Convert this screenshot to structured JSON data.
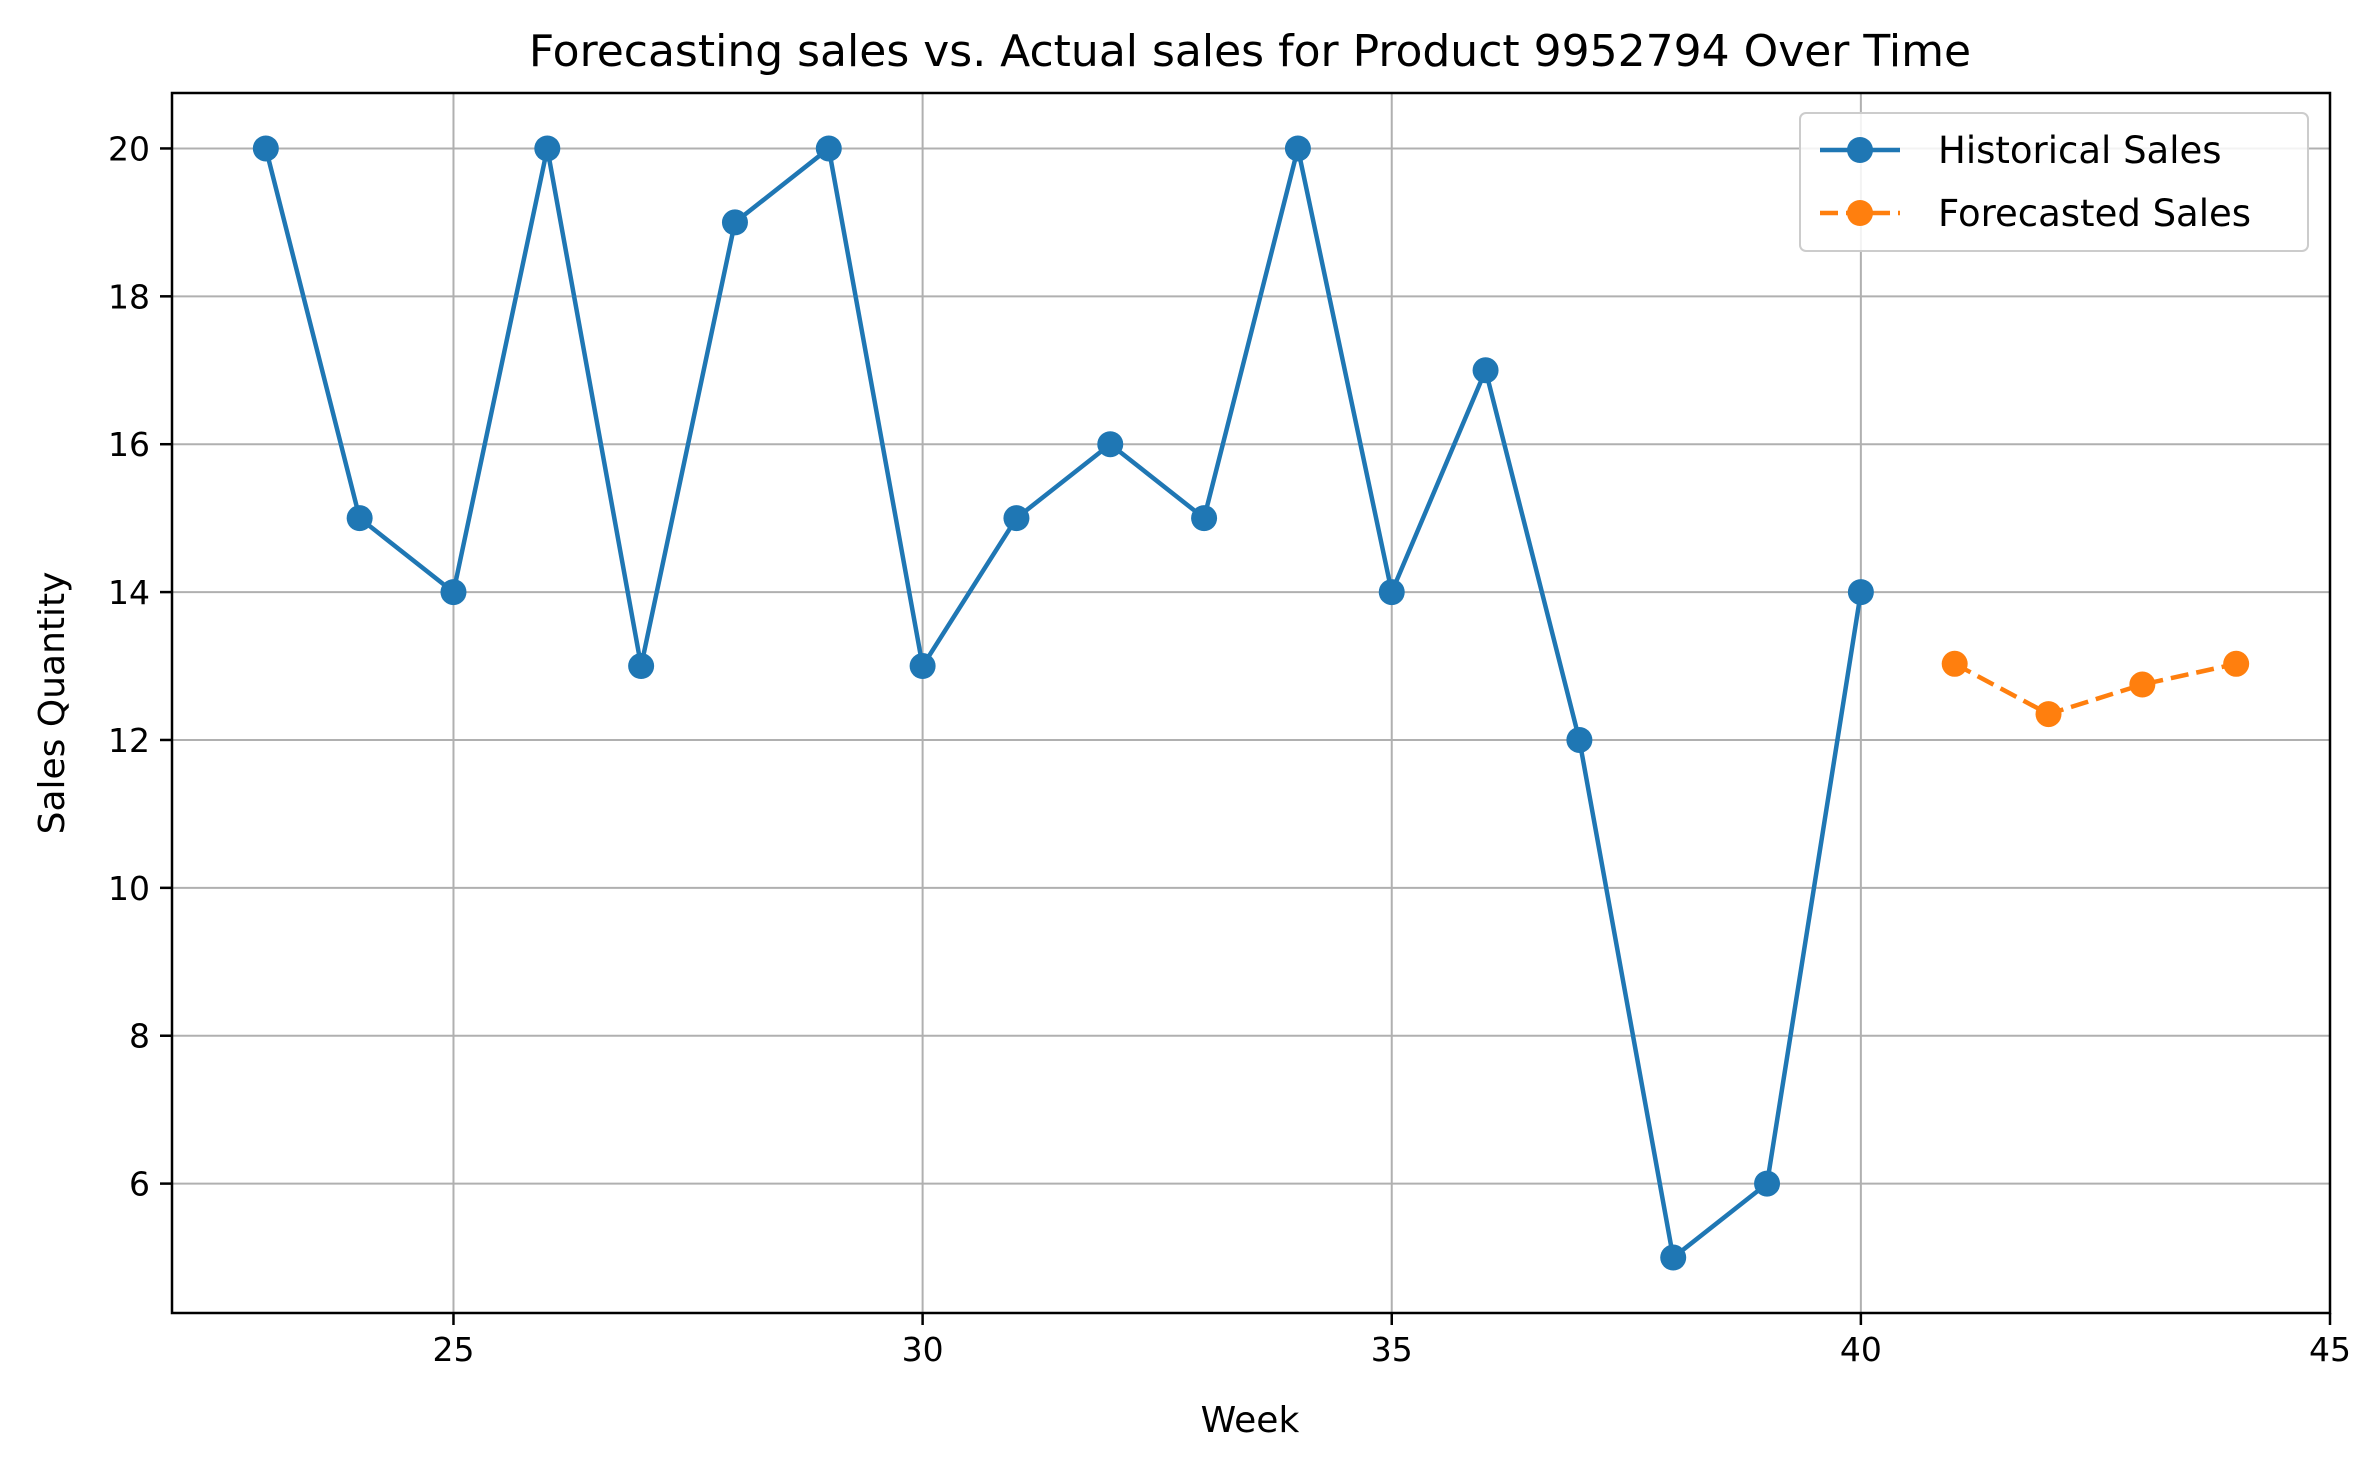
{
  "chart_data": {
    "type": "line",
    "title": "Forecasting sales vs. Actual sales for Product 9952794 Over Time",
    "xlabel": "Week",
    "ylabel": "Sales Quantity",
    "xlim": [
      22,
      45
    ],
    "ylim": [
      4.25,
      20.75
    ],
    "xticks": [
      25,
      30,
      35,
      40,
      45
    ],
    "yticks": [
      6,
      8,
      10,
      12,
      14,
      16,
      18,
      20
    ],
    "grid": true,
    "legend_position": "top-right",
    "series": [
      {
        "name": "Historical Sales",
        "color": "#1f77b4",
        "style": "solid",
        "marker": "circle",
        "x": [
          23,
          24,
          25,
          26,
          27,
          28,
          29,
          30,
          31,
          32,
          33,
          34,
          35,
          36,
          37,
          38,
          39,
          40
        ],
        "y": [
          20,
          15,
          14,
          20,
          13,
          19,
          20,
          13,
          15,
          16,
          15,
          20,
          14,
          17,
          12,
          5,
          6,
          14
        ]
      },
      {
        "name": "Forecasted Sales",
        "color": "#ff7f0e",
        "style": "dashed",
        "marker": "circle",
        "x": [
          41,
          42,
          43,
          44
        ],
        "y": [
          13.03,
          12.35,
          12.75,
          13.03
        ]
      }
    ]
  }
}
